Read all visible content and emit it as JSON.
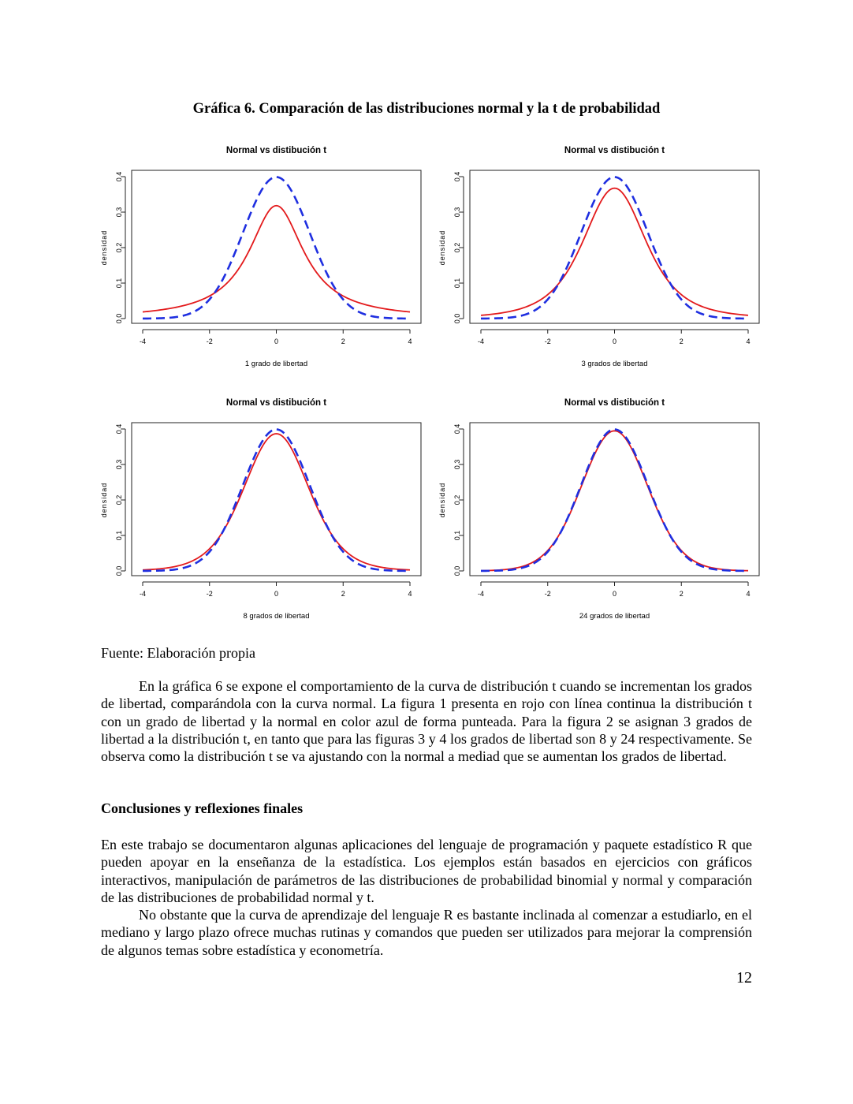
{
  "figure": {
    "title": "Gráfica 6. Comparación de las distribuciones normal y la t de probabilidad"
  },
  "chart_data": [
    {
      "type": "line",
      "title": "Normal vs distibución t",
      "xlabel": "1 grado de libertad",
      "ylabel": "densidad",
      "xlim": [
        -4,
        4
      ],
      "ylim": [
        0,
        0.4
      ],
      "x_ticks": [
        "-4",
        "-2",
        "0",
        "2",
        "4"
      ],
      "y_ticks": [
        "0.0",
        "0.1",
        "0.2",
        "0.3",
        "0.4"
      ],
      "df": 1,
      "series": [
        {
          "color": "#e31a1c",
          "dash": "solid",
          "x": [
            -4,
            -3,
            -2,
            -1,
            0,
            1,
            2,
            3,
            4
          ],
          "values": [
            0.019,
            0.032,
            0.064,
            0.159,
            0.318,
            0.159,
            0.064,
            0.032,
            0.019
          ]
        },
        {
          "color": "#1f2fe0",
          "dash": "dashed",
          "x": [
            -4,
            -3,
            -2,
            -1,
            0,
            1,
            2,
            3,
            4
          ],
          "values": [
            0.0001,
            0.004,
            0.054,
            0.242,
            0.399,
            0.242,
            0.054,
            0.004,
            0.0001
          ]
        }
      ]
    },
    {
      "type": "line",
      "title": "Normal vs distibución t",
      "xlabel": "3 grados de libertad",
      "ylabel": "densidad",
      "xlim": [
        -4,
        4
      ],
      "ylim": [
        0,
        0.4
      ],
      "x_ticks": [
        "-4",
        "-2",
        "0",
        "2",
        "4"
      ],
      "y_ticks": [
        "0.0",
        "0.1",
        "0.2",
        "0.3",
        "0.4"
      ],
      "df": 3,
      "series": [
        {
          "color": "#e31a1c",
          "dash": "solid",
          "x": [
            -4,
            -3,
            -2,
            -1,
            0,
            1,
            2,
            3,
            4
          ],
          "values": [
            0.009,
            0.023,
            0.068,
            0.207,
            0.368,
            0.207,
            0.068,
            0.023,
            0.009
          ]
        },
        {
          "color": "#1f2fe0",
          "dash": "dashed",
          "x": [
            -4,
            -3,
            -2,
            -1,
            0,
            1,
            2,
            3,
            4
          ],
          "values": [
            0.0001,
            0.004,
            0.054,
            0.242,
            0.399,
            0.242,
            0.054,
            0.004,
            0.0001
          ]
        }
      ]
    },
    {
      "type": "line",
      "title": "Normal vs distibución t",
      "xlabel": "8 grados de libertad",
      "ylabel": "densidad",
      "xlim": [
        -4,
        4
      ],
      "ylim": [
        0,
        0.4
      ],
      "x_ticks": [
        "-4",
        "-2",
        "0",
        "2",
        "4"
      ],
      "y_ticks": [
        "0.0",
        "0.1",
        "0.2",
        "0.3",
        "0.4"
      ],
      "df": 8,
      "series": [
        {
          "color": "#e31a1c",
          "dash": "solid",
          "x": [
            -4,
            -3,
            -2,
            -1,
            0,
            1,
            2,
            3,
            4
          ],
          "values": [
            0.005,
            0.014,
            0.063,
            0.23,
            0.387,
            0.23,
            0.063,
            0.014,
            0.005
          ]
        },
        {
          "color": "#1f2fe0",
          "dash": "dashed",
          "x": [
            -4,
            -3,
            -2,
            -1,
            0,
            1,
            2,
            3,
            4
          ],
          "values": [
            0.0001,
            0.004,
            0.054,
            0.242,
            0.399,
            0.242,
            0.054,
            0.004,
            0.0001
          ]
        }
      ]
    },
    {
      "type": "line",
      "title": "Normal vs distibución t",
      "xlabel": "24 grados de libertad",
      "ylabel": "densidad",
      "xlim": [
        -4,
        4
      ],
      "ylim": [
        0,
        0.4
      ],
      "x_ticks": [
        "-4",
        "-2",
        "0",
        "2",
        "4"
      ],
      "y_ticks": [
        "0.0",
        "0.1",
        "0.2",
        "0.3",
        "0.4"
      ],
      "df": 24,
      "series": [
        {
          "color": "#e31a1c",
          "dash": "solid",
          "x": [
            -4,
            -3,
            -2,
            -1,
            0,
            1,
            2,
            3,
            4
          ],
          "values": [
            0.001,
            0.007,
            0.058,
            0.238,
            0.395,
            0.238,
            0.058,
            0.007,
            0.001
          ]
        },
        {
          "color": "#1f2fe0",
          "dash": "dashed",
          "x": [
            -4,
            -3,
            -2,
            -1,
            0,
            1,
            2,
            3,
            4
          ],
          "values": [
            0.0001,
            0.004,
            0.054,
            0.242,
            0.399,
            0.242,
            0.054,
            0.004,
            0.0001
          ]
        }
      ]
    }
  ],
  "source": "Fuente: Elaboración propia",
  "paragraphs": {
    "p1": "En la gráfica 6 se expone el comportamiento de la curva de distribución t cuando se incrementan los grados de libertad, comparándola con la curva normal. La figura 1 presenta en rojo con línea continua la distribución t con un grado de libertad y la normal en color azul de forma punteada. Para la figura 2 se asignan 3 grados de libertad a la distribución t, en tanto que para las figuras 3 y 4 los grados de libertad son 8 y 24 respectivamente. Se observa como la distribución t se va ajustando con la normal a mediad que se aumentan los grados de libertad.",
    "heading": "Conclusiones y reflexiones finales",
    "p2": "En este trabajo se documentaron algunas aplicaciones del lenguaje de programación y paquete estadístico R que pueden apoyar en la enseñanza de la estadística. Los ejemplos están basados en ejercicios con gráficos interactivos, manipulación de parámetros de las distribuciones de probabilidad binomial y normal y comparación de las distribuciones de probabilidad normal y t.",
    "p3": "No obstante que la curva de aprendizaje del lenguaje R es bastante inclinada al comenzar a estudiarlo, en el mediano y largo plazo ofrece muchas rutinas y comandos que pueden ser utilizados para mejorar la comprensión de algunos temas sobre estadística y econometría."
  },
  "page_number": "12"
}
